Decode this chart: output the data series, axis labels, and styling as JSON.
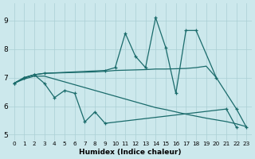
{
  "xlabel": "Humidex (Indice chaleur)",
  "bg_color": "#cce8ec",
  "line_color": "#1a6b6b",
  "grid_color": "#aacfd4",
  "xlim": [
    -0.5,
    23.5
  ],
  "ylim": [
    4.8,
    9.6
  ],
  "xticks": [
    0,
    1,
    2,
    3,
    4,
    5,
    6,
    7,
    8,
    9,
    10,
    11,
    12,
    13,
    14,
    15,
    16,
    17,
    18,
    19,
    20,
    21,
    22,
    23
  ],
  "yticks": [
    5,
    6,
    7,
    8,
    9
  ],
  "series": [
    {
      "x": [
        0,
        1,
        2,
        3,
        4,
        5,
        6,
        7,
        8,
        9,
        21,
        22
      ],
      "y": [
        6.8,
        7.0,
        7.1,
        6.8,
        6.3,
        6.55,
        6.45,
        5.45,
        5.8,
        5.4,
        5.9,
        5.25
      ]
    },
    {
      "x": [
        0,
        1,
        2,
        3,
        4,
        5,
        6,
        7,
        8,
        9,
        10,
        11,
        12,
        13,
        14,
        15,
        16,
        17,
        18,
        19,
        20,
        21,
        22,
        23
      ],
      "y": [
        6.8,
        6.95,
        7.05,
        7.05,
        6.95,
        6.85,
        6.75,
        6.65,
        6.55,
        6.45,
        6.35,
        6.25,
        6.15,
        6.05,
        5.95,
        5.88,
        5.8,
        5.72,
        5.65,
        5.58,
        5.52,
        5.46,
        5.38,
        5.28
      ]
    },
    {
      "x": [
        0,
        1,
        2,
        3,
        4,
        5,
        6,
        7,
        8,
        9,
        10,
        11,
        12,
        13,
        14,
        15,
        16,
        17,
        18,
        19,
        20
      ],
      "y": [
        6.8,
        6.98,
        7.1,
        7.15,
        7.16,
        7.17,
        7.18,
        7.19,
        7.2,
        7.22,
        7.25,
        7.26,
        7.27,
        7.28,
        7.3,
        7.3,
        7.31,
        7.32,
        7.35,
        7.4,
        7.0
      ]
    },
    {
      "x": [
        0,
        1,
        2,
        3,
        9,
        10,
        11,
        12,
        13,
        14,
        15,
        16,
        17,
        18,
        20,
        22,
        23
      ],
      "y": [
        6.8,
        7.0,
        7.1,
        7.15,
        7.25,
        7.35,
        8.55,
        7.75,
        7.35,
        9.1,
        8.05,
        6.45,
        8.65,
        8.65,
        7.0,
        5.9,
        5.25
      ]
    }
  ]
}
